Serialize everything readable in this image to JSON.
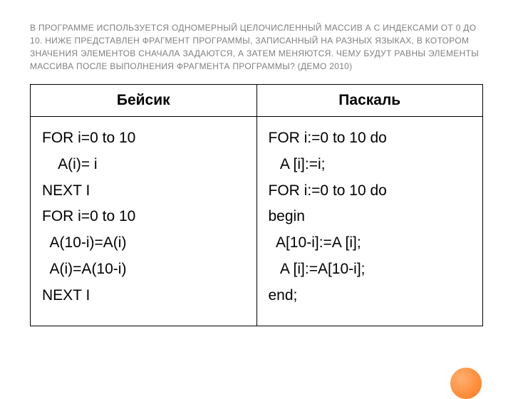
{
  "title": "В ПРОГРАММЕ ИСПОЛЬЗУЕТСЯ ОДНОМЕРНЫЙ ЦЕЛОЧИСЛЕННЫЙ МАССИВ А С ИНДЕКСАМИ ОТ 0 ДО 10. НИЖЕ ПРЕДСТАВЛЕН ФРАГМЕНТ ПРОГРАММЫ, ЗАПИСАННЫЙ НА РАЗНЫХ ЯЗЫКАХ, В КОТОРОМ ЗНАЧЕНИЯ ЭЛЕМЕНТОВ СНАЧАЛА ЗАДАЮТСЯ, А ЗАТЕМ МЕНЯЮТСЯ. ЧЕМУ БУДУТ РАВНЫ ЭЛЕМЕНТЫ МАССИВА ПОСЛЕ ВЫПОЛНЕНИЯ ФРАГМЕНТА ПРОГРАММЫ?  (ДЕМО 2010)",
  "table": {
    "headers": {
      "col1": "Бейсик",
      "col2": "Паскаль"
    },
    "basic": {
      "l1": "FOR i=0 to 10",
      "l2": "    A(i)= i",
      "l3": "NEXT I",
      "l4": "FOR i=0 to 10",
      "l5": "  A(10-i)=A(i)",
      "l6": "  A(i)=A(10-i)",
      "l7": "NEXT I"
    },
    "pascal": {
      "l1": "FOR i:=0 to 10 do",
      "l2": "   A [i]:=i;",
      "l3": "FOR i:=0 to 10 do",
      "l4": "begin",
      "l5": "  A[10-i]:=A [i];",
      "l6": "   A [i]:=A[10-i];",
      "l7": "end;"
    }
  },
  "style": {
    "title_color": "#808080",
    "title_fontsize": 12,
    "border_color": "#000000",
    "cell_fontsize": 21,
    "header_fontweight": "bold",
    "bg": "#ffffff",
    "accent_circle": "#ff7518"
  }
}
